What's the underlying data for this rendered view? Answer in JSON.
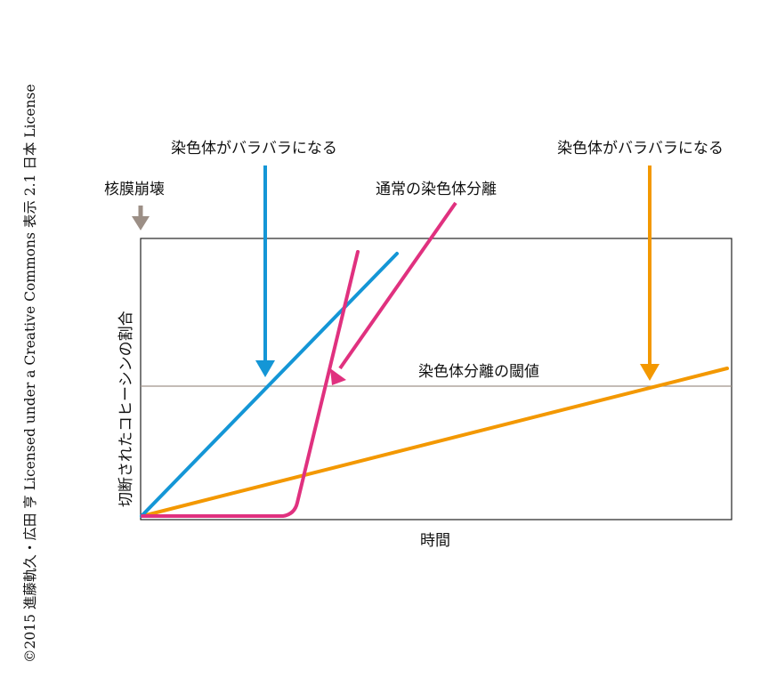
{
  "copyright": "©2015 進藤軌久・広田 亨 Licensed under a Creative Commons 表示 2.1 日本 License",
  "labels": {
    "nuclear_envelope_breakdown": "核膜崩壊",
    "blue_callout": "染色体がバラバラになる",
    "pink_callout": "通常の染色体分離",
    "orange_callout": "染色体がバラバラになる",
    "threshold": "染色体分離の閾値",
    "x_axis": "時間",
    "y_axis": "切断されたコヒーシンの割合"
  },
  "colors": {
    "blue": "#1496d6",
    "pink": "#e0317f",
    "orange": "#f39800",
    "threshold_line": "#a0938b",
    "marker": "#9c8f86",
    "frame": "#222222"
  },
  "icons": {
    "nuclear_envelope_marker": "down-arrow-icon"
  }
}
